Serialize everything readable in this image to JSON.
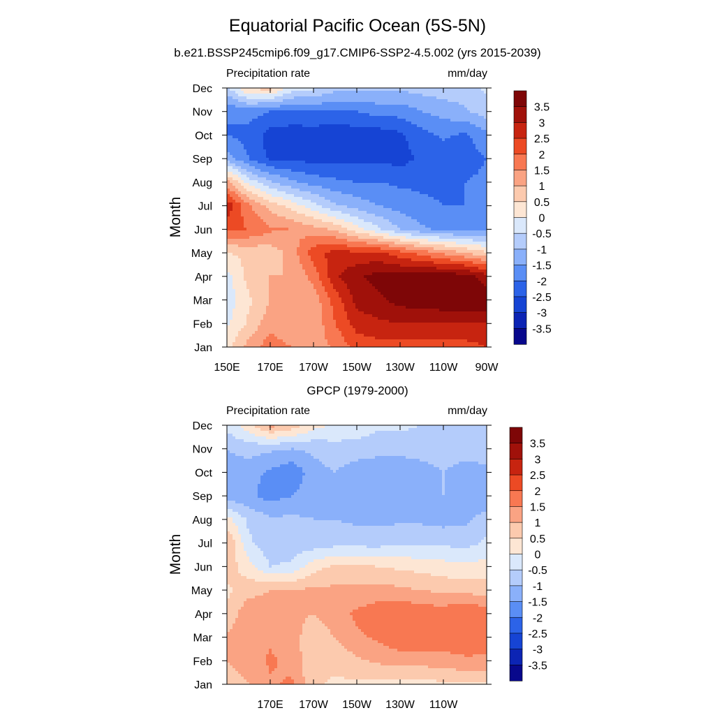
{
  "figure": {
    "title": "Equatorial Pacific Ocean (5S-5N)",
    "subtitle": "b.e21.BSSP245cmip6.f09_g17.CMIP6-SSP2-4.5.002 (yrs 2015-2039)",
    "colors": {
      "levels": [
        -3.5,
        -3,
        -2.5,
        -2,
        -1.5,
        -1,
        -0.5,
        0,
        0.5,
        1,
        1.5,
        2,
        2.5,
        3,
        3.5
      ],
      "palette": [
        "#08088c",
        "#0c24b4",
        "#1644d4",
        "#2c63e8",
        "#5a8ef5",
        "#8ab0fa",
        "#b4ccfb",
        "#dae8fb",
        "#fde6d4",
        "#fccaae",
        "#faa383",
        "#f87852",
        "#ec4a24",
        "#c72410",
        "#a0110a",
        "#7e0607"
      ]
    }
  },
  "chart_data": [
    {
      "type": "heatmap",
      "title": "",
      "left_label": "Precipitation rate",
      "right_label": "mm/day",
      "ylabel": "Month",
      "xlabel": "",
      "xlim": [
        150,
        270
      ],
      "x_units": "degrees east",
      "x_ticks": [
        150,
        170,
        190,
        210,
        230,
        250,
        270
      ],
      "x_tick_labels": [
        "150E",
        "170E",
        "170W",
        "150W",
        "130W",
        "110W",
        "90W"
      ],
      "y_tick_labels": [
        "Jan",
        "Feb",
        "Mar",
        "Apr",
        "May",
        "Jun",
        "Jul",
        "Aug",
        "Sep",
        "Oct",
        "Nov",
        "Dec"
      ],
      "colorbar_labels": [
        "3.5",
        "3",
        "2.5",
        "2",
        "1.5",
        "1",
        "0.5",
        "0",
        "-0.5",
        "-1",
        "-1.5",
        "-2",
        "-2.5",
        "-3",
        "-3.5"
      ],
      "x": [
        150,
        160,
        170,
        180,
        190,
        200,
        210,
        220,
        230,
        240,
        250,
        260,
        270
      ],
      "months": [
        "Jan",
        "Feb",
        "Mar",
        "Apr",
        "May",
        "Jun",
        "Jul",
        "Aug",
        "Sep",
        "Oct",
        "Nov",
        "Dec"
      ],
      "z": [
        [
          0.3,
          1.2,
          1.8,
          1.5,
          1.2,
          1.6,
          2.2,
          2.3,
          2.3,
          2.2,
          2.2,
          2.3,
          2.5
        ],
        [
          -0.1,
          0.6,
          1.3,
          1.0,
          1.1,
          2.0,
          2.7,
          2.9,
          3.0,
          3.0,
          3.0,
          3.0,
          3.0
        ],
        [
          -0.3,
          0.4,
          1.0,
          1.0,
          1.2,
          2.2,
          3.2,
          3.4,
          3.7,
          3.8,
          3.9,
          3.9,
          3.9
        ],
        [
          -0.2,
          0.7,
          1.0,
          1.0,
          1.7,
          2.9,
          3.4,
          3.7,
          3.7,
          3.8,
          3.8,
          3.8,
          3.2
        ],
        [
          0.5,
          0.6,
          0.7,
          1.2,
          2.3,
          2.7,
          2.6,
          2.6,
          2.2,
          1.8,
          1.4,
          1.0,
          0.6
        ],
        [
          2.1,
          2.0,
          1.6,
          1.5,
          1.2,
          0.9,
          0.2,
          -0.4,
          -1.0,
          -1.4,
          -1.6,
          -1.7,
          -1.6
        ],
        [
          2.9,
          1.6,
          0.8,
          0.3,
          -0.3,
          -0.9,
          -1.2,
          -1.5,
          -1.7,
          -1.9,
          -2.0,
          -2.0,
          -1.9
        ],
        [
          1.2,
          -0.2,
          -0.9,
          -1.4,
          -1.7,
          -1.9,
          -2.0,
          -2.0,
          -2.1,
          -2.1,
          -2.1,
          -2.0,
          -1.9
        ],
        [
          -1.2,
          -2.0,
          -2.6,
          -2.6,
          -2.7,
          -2.6,
          -2.6,
          -2.6,
          -2.7,
          -2.4,
          -2.4,
          -2.2,
          -2.0
        ],
        [
          -2.0,
          -2.2,
          -2.7,
          -2.8,
          -2.8,
          -2.9,
          -2.8,
          -2.8,
          -2.6,
          -2.2,
          -1.9,
          -2.1,
          -1.7
        ],
        [
          -2.0,
          -1.8,
          -2.0,
          -2.1,
          -2.0,
          -2.0,
          -2.0,
          -1.8,
          -1.8,
          -1.5,
          -1.3,
          -1.1,
          -0.7
        ],
        [
          -0.6,
          0.6,
          0.7,
          -0.2,
          -0.4,
          -0.8,
          -0.9,
          -0.9,
          -0.9,
          -0.8,
          -0.7,
          -0.7,
          -0.4
        ]
      ]
    },
    {
      "type": "heatmap",
      "title": "GPCP (1979-2000)",
      "left_label": "Precipitation rate",
      "right_label": "mm/day",
      "ylabel": "Month",
      "xlabel": "",
      "xlim": [
        150,
        270
      ],
      "x_units": "degrees east",
      "x_ticks": [
        170,
        190,
        210,
        230,
        250
      ],
      "x_tick_labels": [
        "170E",
        "170W",
        "150W",
        "130W",
        "110W"
      ],
      "y_tick_labels": [
        "Jan",
        "Feb",
        "Mar",
        "Apr",
        "May",
        "Jun",
        "Jul",
        "Aug",
        "Sep",
        "Oct",
        "Nov",
        "Dec"
      ],
      "colorbar_labels": [
        "3.5",
        "3",
        "2.5",
        "2",
        "1.5",
        "1",
        "0.5",
        "0",
        "-0.5",
        "-1",
        "-1.5",
        "-2",
        "-2.5",
        "-3",
        "-3.5"
      ],
      "x": [
        150,
        160,
        170,
        180,
        190,
        200,
        210,
        220,
        230,
        240,
        250,
        260,
        270
      ],
      "months": [
        "Jan",
        "Feb",
        "Mar",
        "Apr",
        "May",
        "Jun",
        "Jul",
        "Aug",
        "Sep",
        "Oct",
        "Nov",
        "Dec"
      ],
      "z": [
        [
          0.8,
          1.0,
          1.4,
          1.6,
          0.6,
          0.4,
          0.4,
          0.3,
          0.3,
          0.3,
          0.4,
          0.4,
          0.4
        ],
        [
          1.0,
          1.2,
          1.6,
          1.3,
          0.6,
          0.7,
          0.9,
          1.1,
          1.2,
          1.2,
          1.3,
          1.4,
          1.4
        ],
        [
          1.1,
          1.3,
          1.4,
          1.2,
          0.7,
          1.0,
          1.4,
          1.6,
          1.9,
          1.9,
          1.8,
          1.9,
          1.8
        ],
        [
          0.6,
          1.4,
          1.2,
          1.1,
          1.0,
          1.3,
          1.6,
          1.8,
          2.0,
          1.8,
          1.8,
          2.0,
          1.8
        ],
        [
          0.4,
          0.8,
          1.0,
          1.0,
          1.1,
          1.1,
          1.1,
          1.2,
          1.1,
          1.0,
          0.9,
          0.8,
          0.8
        ],
        [
          0.8,
          0.2,
          -0.5,
          -0.4,
          0.3,
          0.6,
          0.6,
          0.5,
          0.4,
          0.3,
          0.2,
          0.1,
          0.2
        ],
        [
          1.0,
          -0.4,
          -0.8,
          -0.8,
          -0.8,
          -0.7,
          -0.7,
          -0.7,
          -0.6,
          -0.6,
          -0.6,
          -0.7,
          -0.4
        ],
        [
          0.2,
          -0.6,
          -0.9,
          -0.9,
          -1.0,
          -1.0,
          -1.1,
          -1.1,
          -1.1,
          -1.1,
          -1.2,
          -1.1,
          -0.8
        ],
        [
          -1.3,
          -1.4,
          -1.7,
          -1.5,
          -1.2,
          -1.1,
          -1.4,
          -1.4,
          -1.4,
          -1.2,
          -1.0,
          -1.4,
          -1.3
        ],
        [
          -1.2,
          -1.3,
          -1.6,
          -1.9,
          -1.2,
          -1.0,
          -1.3,
          -1.4,
          -1.4,
          -1.2,
          -1.0,
          -1.2,
          -1.1
        ],
        [
          -1.0,
          -0.8,
          -0.9,
          -1.0,
          -0.9,
          -0.7,
          -0.7,
          -0.8,
          -0.8,
          -0.8,
          -0.8,
          -0.8,
          -0.8
        ],
        [
          -0.3,
          0.3,
          1.2,
          0.8,
          0.2,
          -0.1,
          -0.2,
          -0.4,
          -0.4,
          -0.5,
          -0.5,
          -0.5,
          -0.6
        ]
      ]
    }
  ]
}
